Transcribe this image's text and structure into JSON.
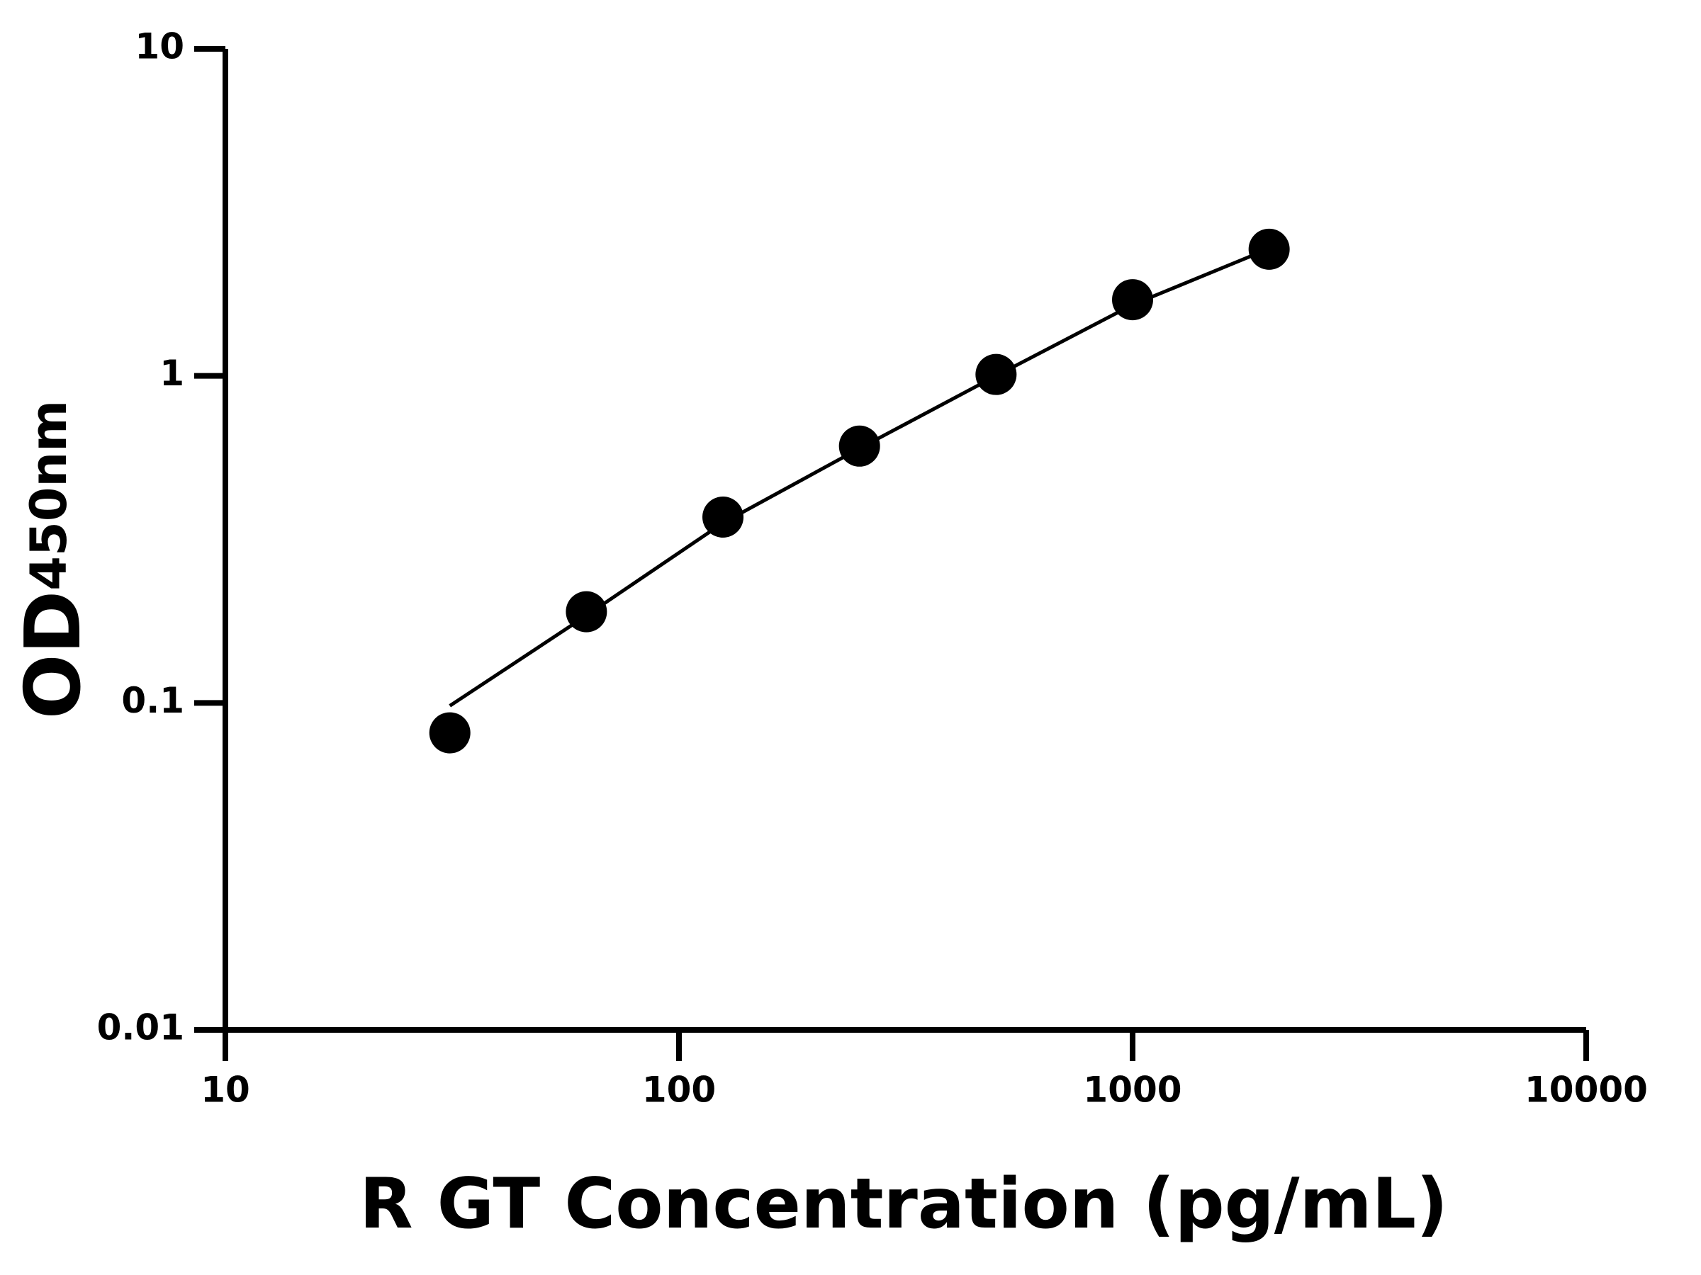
{
  "chart_data": {
    "type": "scatter",
    "xlabel": "R GT Concentration (pg/mL)",
    "ylabel": "OD",
    "ylabel_sub": "450nm",
    "xscale": "log",
    "yscale": "log",
    "xlim": [
      10,
      10000
    ],
    "ylim": [
      0.01,
      10
    ],
    "xticks": [
      10,
      100,
      1000,
      10000
    ],
    "yticks": [
      0.01,
      0.1,
      1,
      10
    ],
    "grid": false,
    "color": "#000000",
    "points": {
      "x": [
        31.25,
        62.5,
        125,
        250,
        500,
        1000,
        2000
      ],
      "values": [
        0.081,
        0.19,
        0.37,
        0.61,
        1.01,
        1.71,
        2.44
      ]
    },
    "fit_line": {
      "x": [
        31.25,
        62.5,
        125,
        250,
        500,
        1000,
        2000
      ],
      "values": [
        0.098,
        0.185,
        0.355,
        0.6,
        1.0,
        1.65,
        2.45
      ]
    }
  }
}
